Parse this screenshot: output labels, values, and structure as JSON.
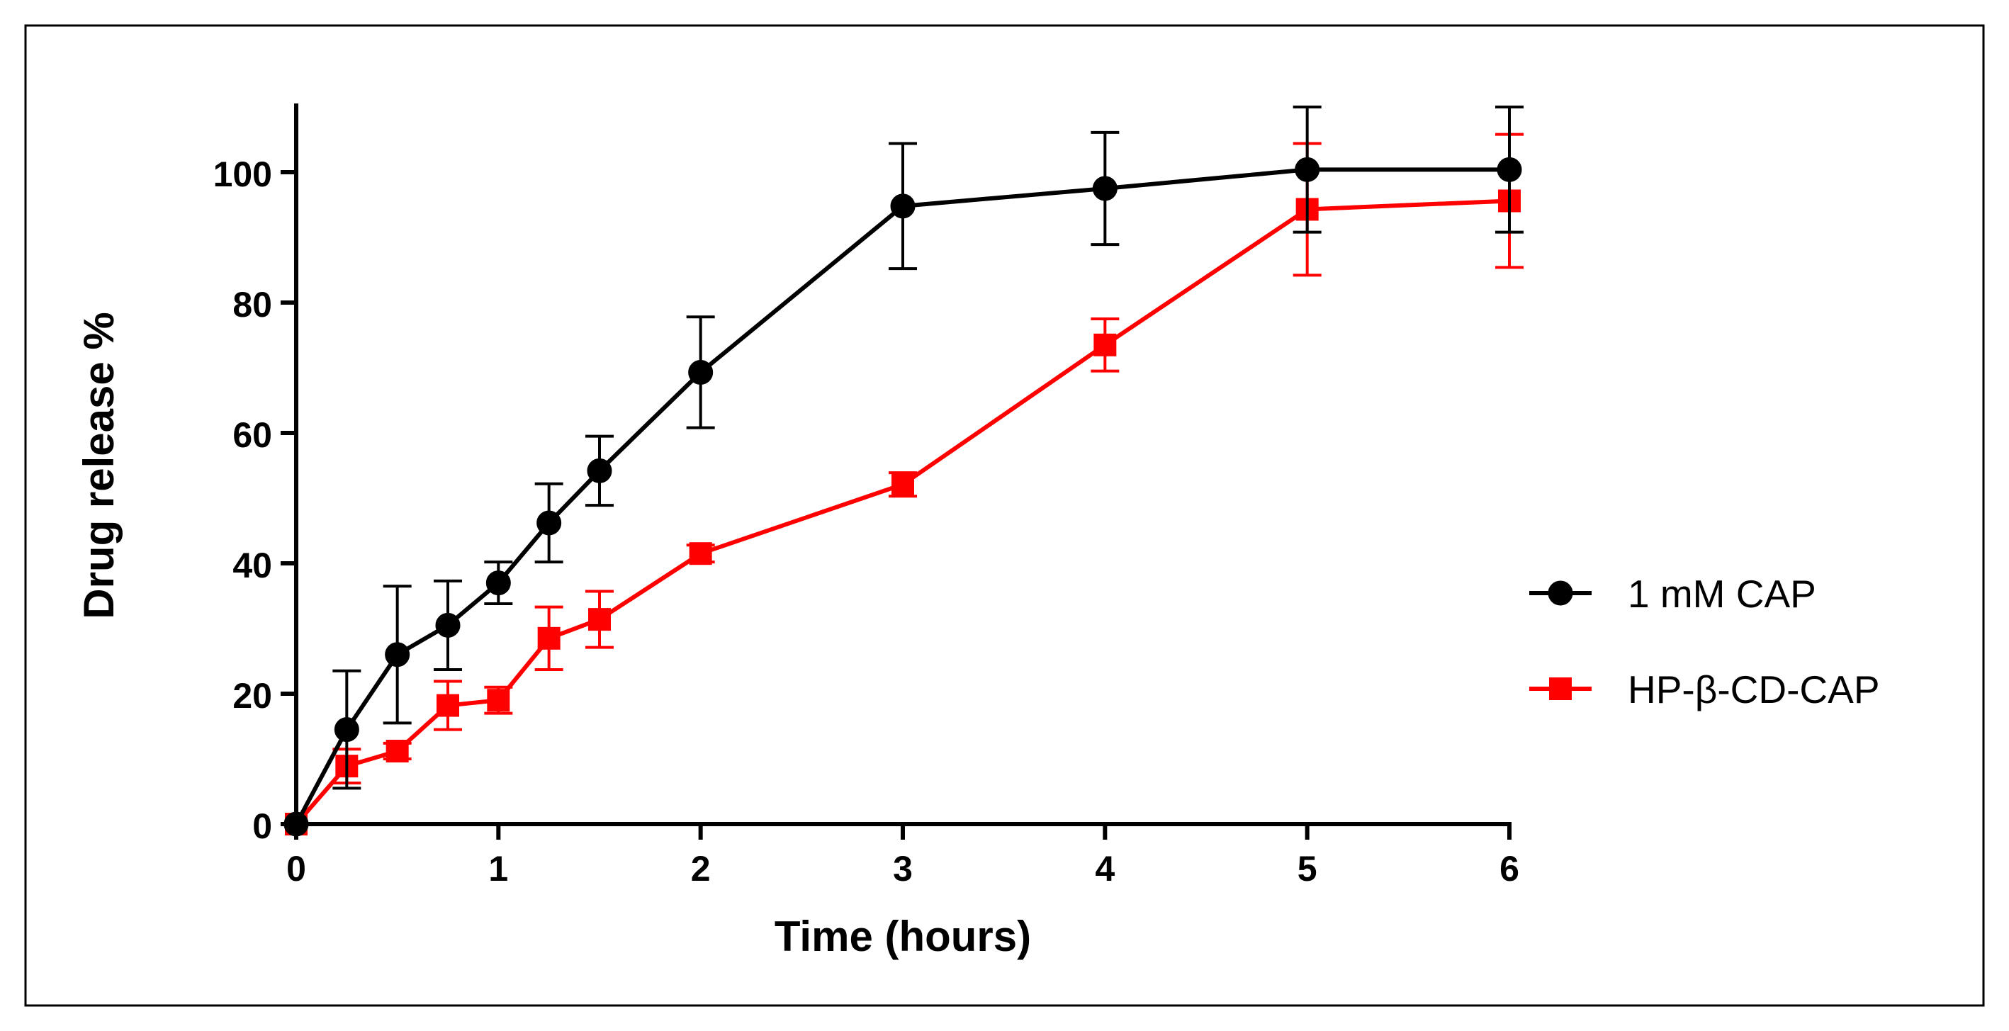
{
  "chart_data": {
    "type": "line",
    "title": "",
    "xlabel": "Time (hours)",
    "ylabel": "Drug release %",
    "xlim": [
      0,
      6
    ],
    "ylim": [
      0,
      110
    ],
    "x_ticks": [
      0,
      1,
      2,
      3,
      4,
      5,
      6
    ],
    "x_tick_labels": [
      "0",
      "1",
      "2",
      "3",
      "4",
      "5",
      "6"
    ],
    "y_ticks": [
      0,
      20,
      40,
      60,
      80,
      100
    ],
    "y_tick_labels": [
      "0",
      "20",
      "40",
      "60",
      "80",
      "100"
    ],
    "grid": false,
    "legend_position": "right",
    "series": [
      {
        "name": "1 mM CAP",
        "color": "#000000",
        "marker": "circle",
        "x": [
          0,
          0.25,
          0.5,
          0.75,
          1,
          1.25,
          1.5,
          2,
          3,
          4,
          5,
          6
        ],
        "y": [
          0,
          14.5,
          26,
          30.5,
          37,
          46.2,
          54.2,
          69.3,
          94.8,
          97.5,
          100.4,
          100.4
        ],
        "error": [
          0,
          9,
          10.5,
          6.8,
          3.2,
          6,
          5.3,
          8.5,
          9.6,
          8.6,
          9.6,
          9.6
        ]
      },
      {
        "name": "HP-β-CD-CAP",
        "color": "#ff0000",
        "marker": "square",
        "x": [
          0,
          0.25,
          0.5,
          0.75,
          1,
          1.25,
          1.5,
          2,
          3,
          4,
          5,
          6
        ],
        "y": [
          0,
          8.9,
          11.2,
          18.2,
          19,
          28.5,
          31.4,
          41.5,
          52.1,
          73.5,
          94.3,
          95.6
        ],
        "error": [
          0,
          2.6,
          1.2,
          3.7,
          2,
          4.8,
          4.3,
          1.3,
          1.8,
          4,
          10.1,
          10.2
        ]
      }
    ]
  }
}
